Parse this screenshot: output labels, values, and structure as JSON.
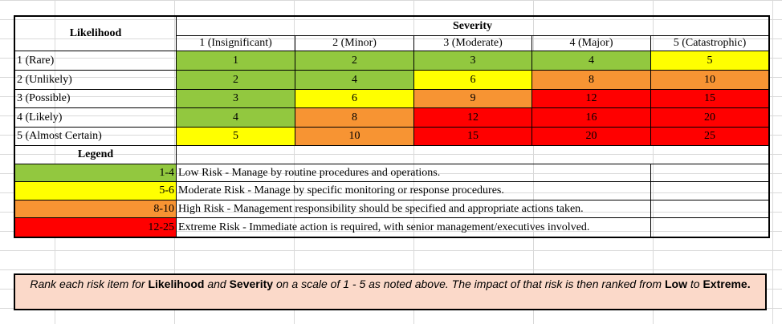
{
  "matrix": {
    "likelihood_header": "Likelihood",
    "severity_header": "Severity",
    "severity_levels": [
      "1 (Insignificant)",
      "2 (Minor)",
      "3 (Moderate)",
      "4 (Major)",
      "5 (Catastrophic)"
    ],
    "rows": [
      {
        "label": "1 (Rare)",
        "values": [
          "1",
          "2",
          "3",
          "4",
          "5"
        ],
        "colors": [
          "green",
          "green",
          "green",
          "green",
          "yellow"
        ]
      },
      {
        "label": "2 (Unlikely)",
        "values": [
          "2",
          "4",
          "6",
          "8",
          "10"
        ],
        "colors": [
          "green",
          "green",
          "yellow",
          "orange",
          "orange"
        ]
      },
      {
        "label": "3 (Possible)",
        "values": [
          "3",
          "6",
          "9",
          "12",
          "15"
        ],
        "colors": [
          "green",
          "yellow",
          "orange",
          "red",
          "red"
        ]
      },
      {
        "label": "4 (Likely)",
        "values": [
          "4",
          "8",
          "12",
          "16",
          "20"
        ],
        "colors": [
          "green",
          "orange",
          "red",
          "red",
          "red"
        ]
      },
      {
        "label": "5 (Almost Certain)",
        "values": [
          "5",
          "10",
          "15",
          "20",
          "25"
        ],
        "colors": [
          "yellow",
          "orange",
          "red",
          "red",
          "red"
        ]
      }
    ],
    "colors": {
      "green": "#92c83f",
      "yellow": "#ffff00",
      "orange": "#f79433",
      "red": "#ff0000"
    }
  },
  "legend": {
    "title": "Legend",
    "items": [
      {
        "range": "1-4",
        "color": "green",
        "description": "Low Risk - Manage by routine procedures and operations."
      },
      {
        "range": "5-6",
        "color": "yellow",
        "description": "Moderate Risk - Manage by specific monitoring or response procedures."
      },
      {
        "range": "8-10",
        "color": "orange",
        "description": "High Risk - Management responsibility should be specified and appropriate actions taken."
      },
      {
        "range": "12-25",
        "color": "red",
        "description": "Extreme Risk - Immediate action is required, with senior management/executives involved."
      }
    ]
  },
  "note": {
    "part1": "Rank each risk item for ",
    "likelihood": "Likelihood",
    "part2": " and ",
    "severity": "Severity",
    "part3": " on a scale of 1 - 5 as noted above. The impact of that risk is then ranked from ",
    "low": "Low",
    "part4": " to ",
    "extreme": "Extreme.",
    "background": "#fbd9c9"
  }
}
